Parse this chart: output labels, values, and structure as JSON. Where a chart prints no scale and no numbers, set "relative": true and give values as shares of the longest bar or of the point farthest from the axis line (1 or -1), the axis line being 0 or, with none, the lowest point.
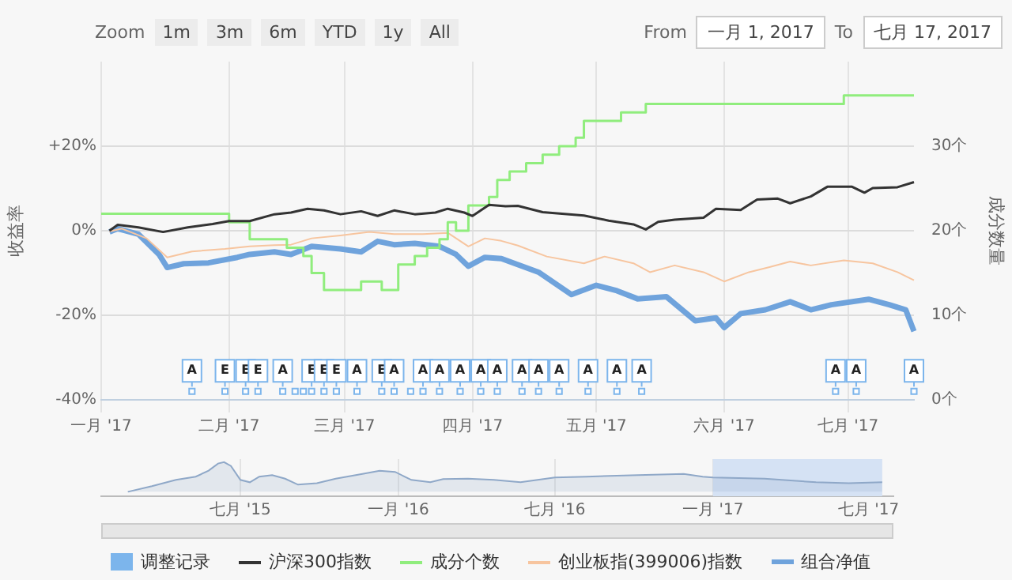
{
  "chart_data": [
    {
      "type": "line",
      "ylabel": "收益率",
      "y2label": "成分数量",
      "annotations": [
        "Zoom",
        "1m",
        "3m",
        "6m",
        "YTD",
        "1y",
        "All",
        "From",
        "一月 1, 2017",
        "To",
        "七月 17, 2017"
      ],
      "xlim": [
        "2017-01-01",
        "2017-07-17"
      ],
      "xticks": [
        {
          "value": "2017-01-01",
          "label": "一月 '17"
        },
        {
          "value": "2017-02-01",
          "label": "二月 '17"
        },
        {
          "value": "2017-03-01",
          "label": "三月 '17"
        },
        {
          "value": "2017-04-01",
          "label": "四月 '17"
        },
        {
          "value": "2017-05-01",
          "label": "五月 '17"
        },
        {
          "value": "2017-06-01",
          "label": "六月 '17"
        },
        {
          "value": "2017-07-01",
          "label": "七月 '17"
        }
      ],
      "ylim": [
        -40,
        40
      ],
      "yticks": [
        {
          "value": -40,
          "label": "-40%"
        },
        {
          "value": -20,
          "label": "-20%"
        },
        {
          "value": 0,
          "label": "0%"
        },
        {
          "value": 20,
          "label": "+20%"
        }
      ],
      "y2lim": [
        0,
        40
      ],
      "y2ticks": [
        {
          "value": 0,
          "label": "0个"
        },
        {
          "value": 10,
          "label": "10个"
        },
        {
          "value": 20,
          "label": "20个"
        },
        {
          "value": 30,
          "label": "30个"
        }
      ],
      "grid": true,
      "legend": "bottom",
      "marker": "none",
      "series": [
        {
          "name": "调整记录",
          "type": "scatter",
          "marker": "square",
          "color": "#7cb5ec",
          "x": [
            "2017-01-23",
            "2017-01-31",
            "2017-02-05",
            "2017-02-08",
            "2017-02-14",
            "2017-02-17",
            "2017-02-19",
            "2017-02-21",
            "2017-02-24",
            "2017-02-27",
            "2017-03-04",
            "2017-03-10",
            "2017-03-13",
            "2017-03-17",
            "2017-03-20",
            "2017-03-24",
            "2017-03-29",
            "2017-04-03",
            "2017-04-07",
            "2017-04-13",
            "2017-04-17",
            "2017-04-22",
            "2017-04-29",
            "2017-05-06",
            "2017-05-12",
            "2017-06-28",
            "2017-07-03",
            "2017-07-17"
          ],
          "values": [
            -38,
            -38,
            -38,
            -38,
            -38,
            -38,
            -38,
            -38,
            -38,
            -38,
            -38,
            -38,
            -38,
            -38,
            -38,
            -38,
            -38,
            -38,
            -38,
            -38,
            -38,
            -38,
            -38,
            -38,
            -38,
            -38,
            -38,
            -38
          ],
          "value_labels": [
            "A",
            "E",
            "E",
            "E",
            "A",
            null,
            null,
            "E",
            "E",
            "E",
            "A",
            "E",
            "A",
            null,
            "A",
            "A",
            "A",
            "A",
            "A",
            "A",
            "A",
            "A",
            "A",
            "A",
            "A",
            "A",
            "A",
            "A"
          ]
        },
        {
          "name": "沪深300指数",
          "color": "#333333",
          "x": [
            "2017-01-03",
            "2017-01-05",
            "2017-01-10",
            "2017-01-16",
            "2017-01-22",
            "2017-01-28",
            "2017-02-01",
            "2017-02-06",
            "2017-02-12",
            "2017-02-16",
            "2017-02-20",
            "2017-02-24",
            "2017-02-28",
            "2017-03-05",
            "2017-03-09",
            "2017-03-13",
            "2017-03-18",
            "2017-03-23",
            "2017-03-26",
            "2017-03-30",
            "2017-04-01",
            "2017-04-05",
            "2017-04-09",
            "2017-04-12",
            "2017-04-18",
            "2017-04-28",
            "2017-05-04",
            "2017-05-10",
            "2017-05-13",
            "2017-05-16",
            "2017-05-20",
            "2017-05-27",
            "2017-05-30",
            "2017-06-05",
            "2017-06-09",
            "2017-06-14",
            "2017-06-17",
            "2017-06-22",
            "2017-06-26",
            "2017-07-02",
            "2017-07-05",
            "2017-07-07",
            "2017-07-13",
            "2017-07-17"
          ],
          "values": [
            0,
            1.4,
            0.8,
            -0.3,
            0.8,
            1.6,
            2.3,
            2.3,
            3.9,
            4.3,
            5.2,
            4.8,
            3.9,
            4.6,
            3.5,
            4.8,
            3.9,
            4.3,
            5.2,
            4.3,
            3.5,
            6.1,
            5.8,
            5.9,
            4.4,
            3.6,
            2.4,
            1.5,
            0.3,
            2.1,
            2.6,
            3.1,
            5.2,
            4.9,
            7.4,
            7.6,
            6.5,
            8.1,
            10.4,
            10.4,
            9.0,
            10.1,
            10.3,
            11.5
          ]
        },
        {
          "name": "成分个数",
          "type": "step",
          "axis": "y2",
          "color": "#90ed7d",
          "x": [
            "2017-01-01",
            "2017-02-01",
            "2017-02-06",
            "2017-02-15",
            "2017-02-19",
            "2017-02-21",
            "2017-02-24",
            "2017-03-05",
            "2017-03-10",
            "2017-03-14",
            "2017-03-18",
            "2017-03-21",
            "2017-03-24",
            "2017-03-26",
            "2017-03-28",
            "2017-03-31",
            "2017-04-05",
            "2017-04-07",
            "2017-04-10",
            "2017-04-14",
            "2017-04-18",
            "2017-04-22",
            "2017-04-26",
            "2017-04-28",
            "2017-05-07",
            "2017-05-13",
            "2017-06-30",
            "2017-07-17"
          ],
          "values": [
            22,
            21,
            19,
            18,
            17,
            15,
            13,
            14,
            13,
            16,
            17,
            18,
            19,
            21,
            20,
            23,
            24,
            26,
            27,
            28,
            29,
            30,
            31,
            33,
            34,
            35,
            36,
            36
          ]
        },
        {
          "name": "创业板指(399006)指数",
          "color": "#f7c59f",
          "x": [
            "2017-01-03",
            "2017-01-06",
            "2017-01-12",
            "2017-01-17",
            "2017-01-23",
            "2017-01-31",
            "2017-02-06",
            "2017-02-12",
            "2017-02-16",
            "2017-02-21",
            "2017-02-28",
            "2017-03-07",
            "2017-03-13",
            "2017-03-20",
            "2017-03-26",
            "2017-03-31",
            "2017-04-04",
            "2017-04-08",
            "2017-04-12",
            "2017-04-19",
            "2017-04-28",
            "2017-05-03",
            "2017-05-10",
            "2017-05-14",
            "2017-05-20",
            "2017-05-27",
            "2017-06-01",
            "2017-06-07",
            "2017-06-12",
            "2017-06-17",
            "2017-06-22",
            "2017-06-30",
            "2017-07-07",
            "2017-07-13",
            "2017-07-17"
          ],
          "values": [
            -0.2,
            0.5,
            -1.8,
            -6.3,
            -4.9,
            -4.3,
            -3.7,
            -3.4,
            -3.3,
            -1.8,
            -1.1,
            -0.3,
            -0.8,
            -0.8,
            -0.5,
            -3.7,
            -1.8,
            -2.4,
            -3.5,
            -6.1,
            -7.7,
            -6.1,
            -7.7,
            -9.8,
            -8.2,
            -9.8,
            -12,
            -9.8,
            -8.6,
            -7.3,
            -8.2,
            -7,
            -7.7,
            -9.8,
            -11.7
          ]
        },
        {
          "name": "组合净值",
          "color": "#6fa3dc",
          "x": [
            "2017-01-03",
            "2017-01-05",
            "2017-01-10",
            "2017-01-15",
            "2017-01-17",
            "2017-01-21",
            "2017-01-27",
            "2017-02-03",
            "2017-02-06",
            "2017-02-12",
            "2017-02-16",
            "2017-02-21",
            "2017-02-28",
            "2017-03-05",
            "2017-03-09",
            "2017-03-13",
            "2017-03-18",
            "2017-03-24",
            "2017-03-28",
            "2017-03-31",
            "2017-04-04",
            "2017-04-08",
            "2017-04-17",
            "2017-04-25",
            "2017-05-01",
            "2017-05-06",
            "2017-05-11",
            "2017-05-18",
            "2017-05-25",
            "2017-05-30",
            "2017-06-01",
            "2017-06-05",
            "2017-06-11",
            "2017-06-17",
            "2017-06-22",
            "2017-06-27",
            "2017-07-06",
            "2017-07-11",
            "2017-07-15",
            "2017-07-17"
          ],
          "values": [
            -0.3,
            0.5,
            -0.8,
            -5.6,
            -8.7,
            -7.8,
            -7.6,
            -6.3,
            -5.6,
            -5,
            -5.6,
            -3.7,
            -4.3,
            -5,
            -2.5,
            -3.3,
            -3,
            -3.7,
            -5.6,
            -8.4,
            -6.3,
            -6.6,
            -9.8,
            -15.1,
            -12.9,
            -14.2,
            -16.1,
            -15.6,
            -21.3,
            -20.6,
            -22.9,
            -19.6,
            -18.7,
            -16.8,
            -18.7,
            -17.5,
            -16.2,
            -17.5,
            -18.7,
            -23.8
          ]
        }
      ]
    },
    {
      "type": "area",
      "relative": true,
      "color": "#8fa8c8",
      "tick_labels": "x",
      "grid": "x",
      "xlim": [
        "2015-01-20",
        "2017-07-30"
      ],
      "xticks": [
        {
          "value": "2015-07-01",
          "label": "七月 '15"
        },
        {
          "value": "2016-01-01",
          "label": "一月 '16"
        },
        {
          "value": "2016-07-01",
          "label": "七月 '16"
        },
        {
          "value": "2017-01-01",
          "label": "一月 '17"
        },
        {
          "value": "2017-07-01",
          "label": "七月 '17"
        }
      ],
      "bands": [
        {
          "axis": "x",
          "from": "2017-01-01",
          "to": "2017-07-17",
          "color": "#d5e2f4"
        }
      ],
      "x": [
        "2015-02-20",
        "2015-03-20",
        "2015-04-17",
        "2015-05-10",
        "2015-05-25",
        "2015-06-05",
        "2015-06-12",
        "2015-06-20",
        "2015-07-01",
        "2015-07-12",
        "2015-07-23",
        "2015-08-07",
        "2015-08-22",
        "2015-09-06",
        "2015-09-28",
        "2015-10-20",
        "2015-11-20",
        "2015-12-10",
        "2015-12-28",
        "2016-01-16",
        "2016-02-07",
        "2016-02-22",
        "2016-03-22",
        "2016-04-21",
        "2016-05-22",
        "2016-07-01",
        "2016-08-07",
        "2016-10-06",
        "2016-11-28",
        "2016-12-20",
        "2017-01-01",
        "2017-03-02",
        "2017-05-01",
        "2017-06-08",
        "2017-07-17"
      ],
      "values": [
        0,
        0.19,
        0.4,
        0.51,
        0.71,
        0.95,
        1,
        0.87,
        0.4,
        0.32,
        0.51,
        0.56,
        0.44,
        0.24,
        0.29,
        0.44,
        0.6,
        0.71,
        0.67,
        0.4,
        0.32,
        0.43,
        0.44,
        0.4,
        0.32,
        0.48,
        0.51,
        0.56,
        0.6,
        0.51,
        0.48,
        0.44,
        0.32,
        0.29,
        0.32
      ]
    }
  ]
}
